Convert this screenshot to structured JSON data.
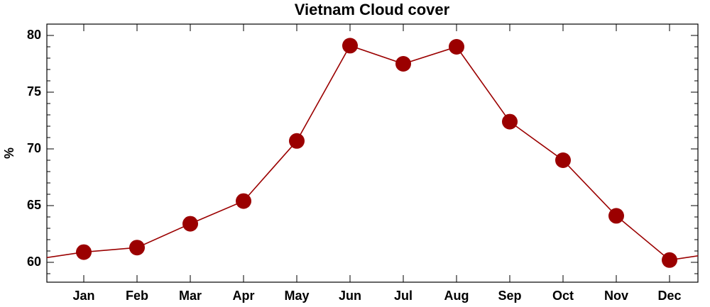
{
  "chart_data": {
    "type": "line",
    "title": "Vietnam Cloud cover",
    "ylabel": "%",
    "categories": [
      "Jan",
      "Feb",
      "Mar",
      "Apr",
      "May",
      "Jun",
      "Jul",
      "Aug",
      "Sep",
      "Oct",
      "Nov",
      "Dec"
    ],
    "values": [
      60.9,
      61.3,
      63.4,
      65.4,
      70.7,
      79.1,
      77.5,
      79.0,
      72.4,
      69.0,
      64.1,
      60.2
    ],
    "color": "#9b0000",
    "ylim": [
      58.25,
      81
    ],
    "yticks": [
      60,
      65,
      70,
      75,
      80
    ]
  }
}
